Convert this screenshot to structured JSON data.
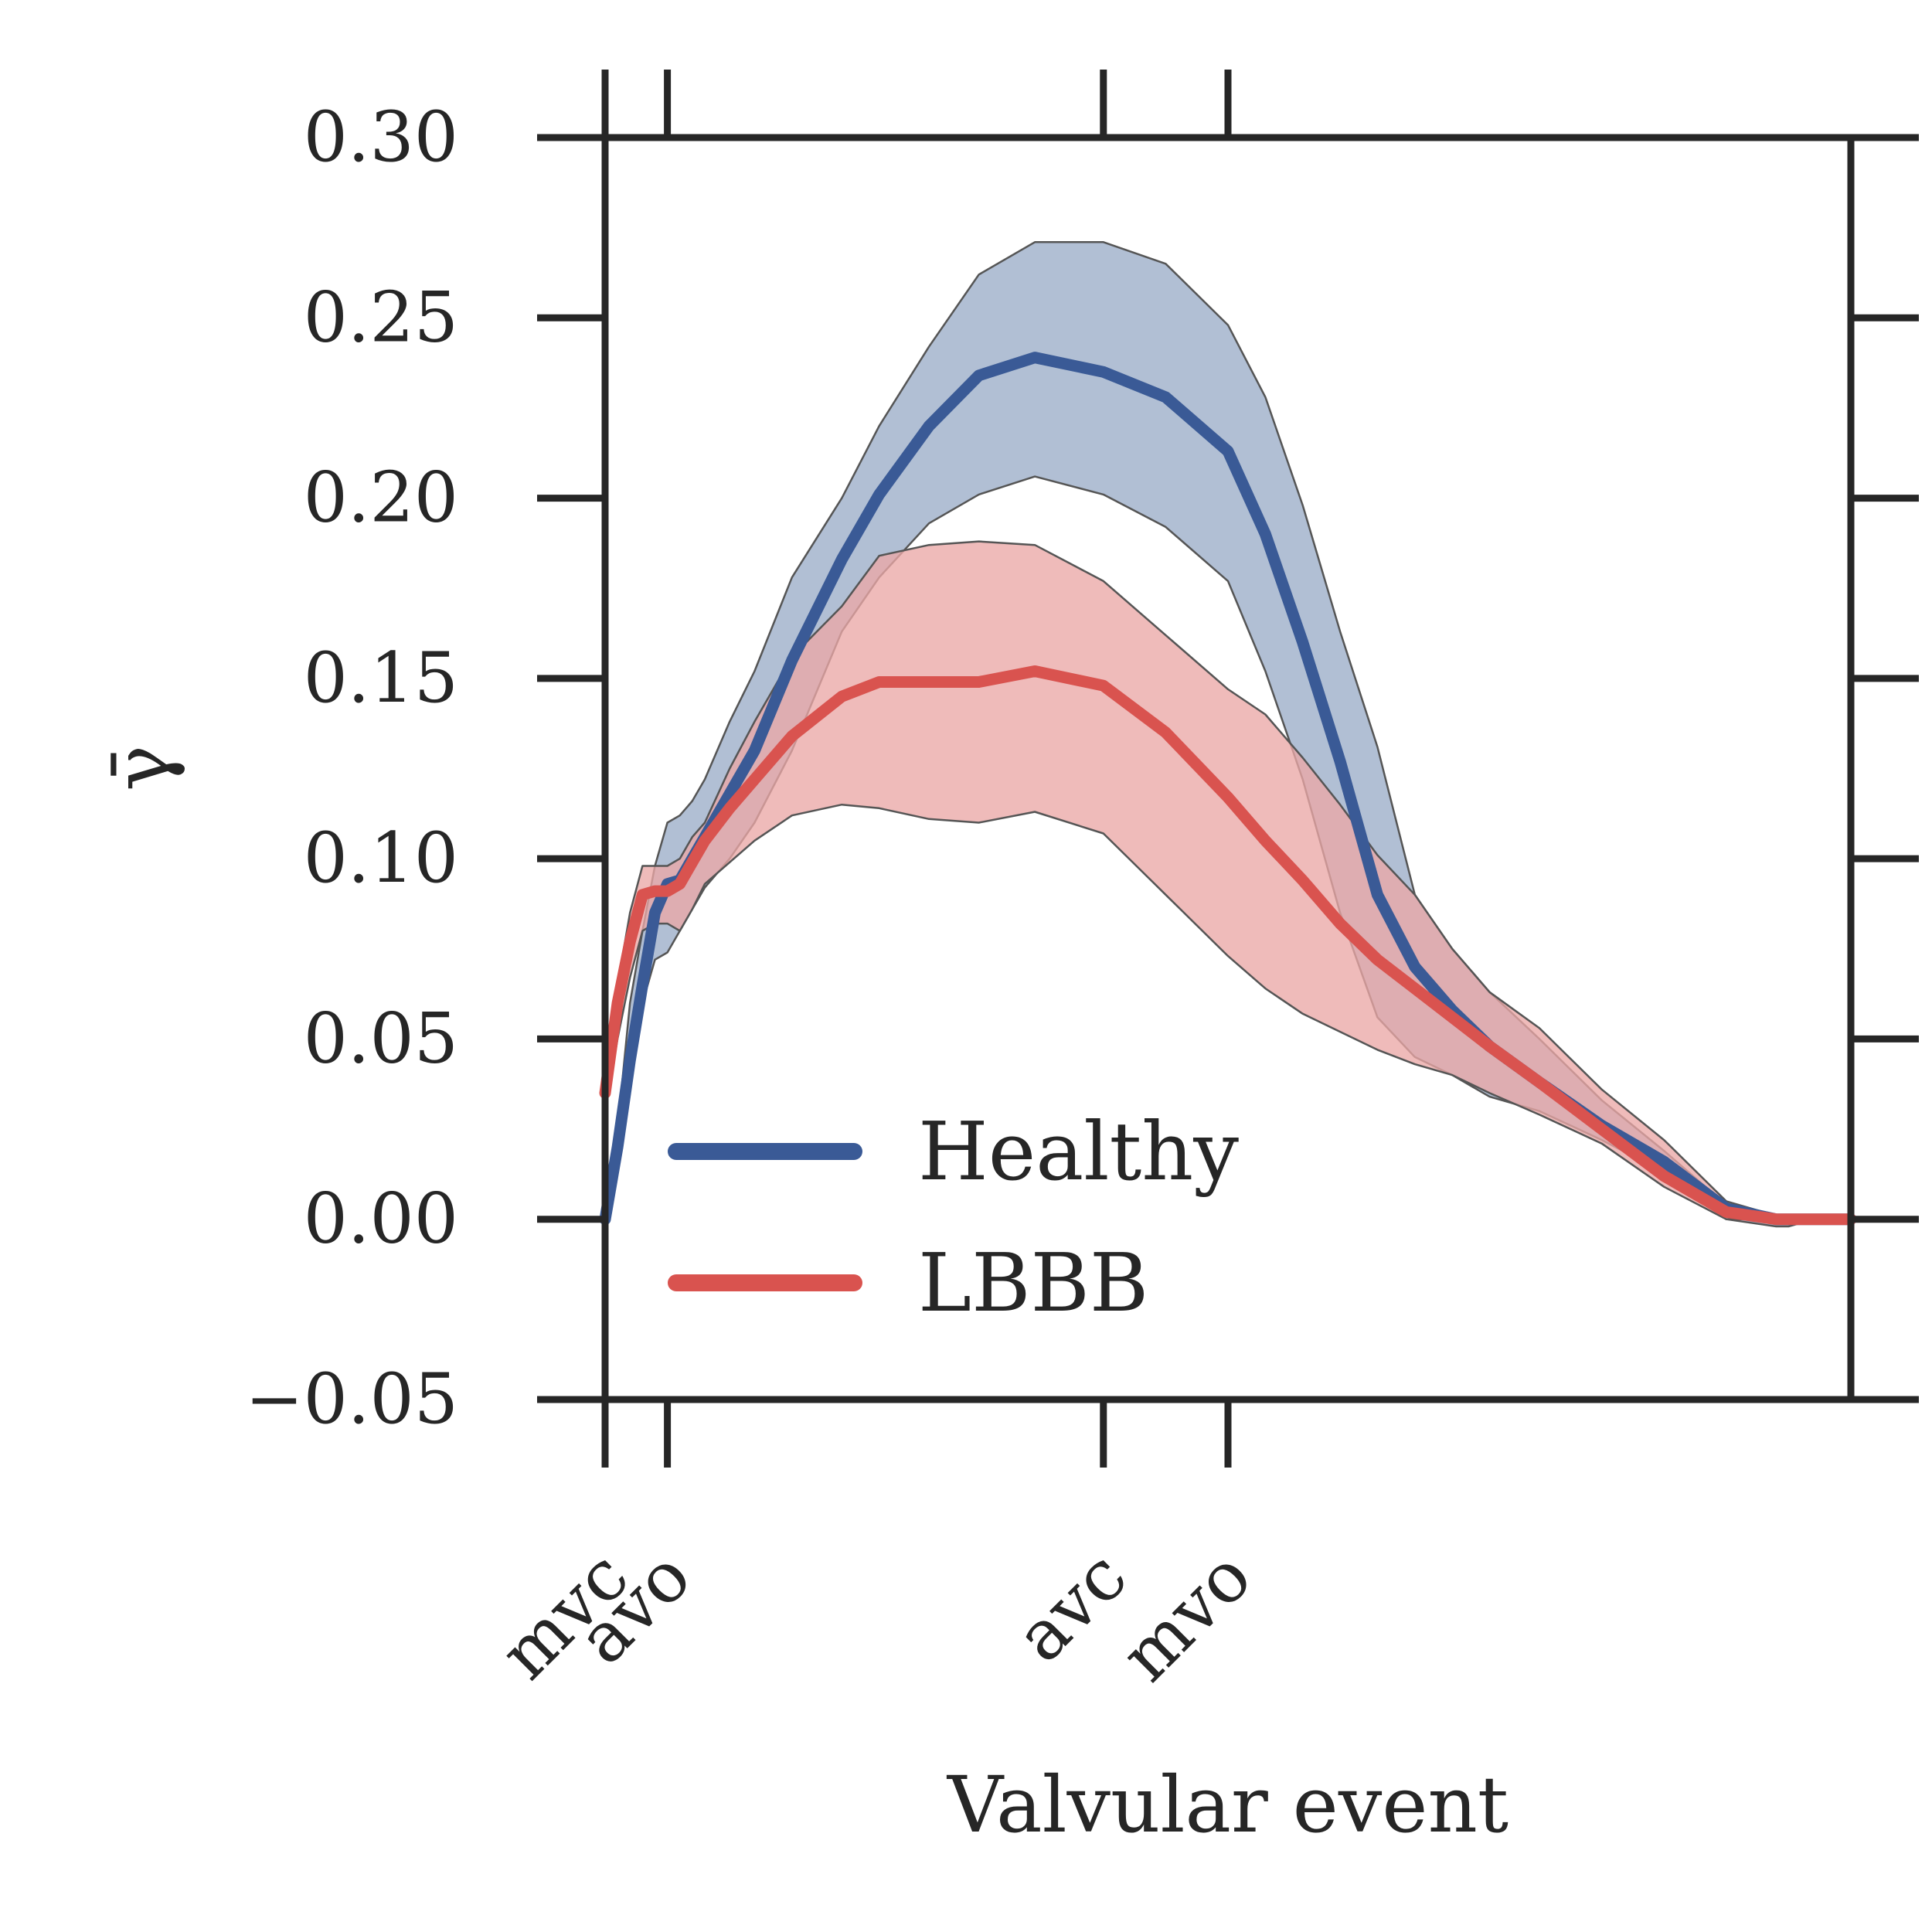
{
  "chart_data": {
    "type": "line",
    "title": "",
    "xlabel": "Valvular event",
    "ylabel": "γ̄",
    "ylim": [
      -0.05,
      0.3
    ],
    "yticks": [
      -0.05,
      0.0,
      0.05,
      0.1,
      0.15,
      0.2,
      0.25,
      0.3
    ],
    "ytick_labels": [
      "−0.05",
      "0.00",
      "0.05",
      "0.10",
      "0.15",
      "0.20",
      "0.25",
      "0.30"
    ],
    "xlim": [
      0,
      100
    ],
    "xticks": [
      0,
      5,
      40,
      50
    ],
    "xtick_labels": [
      "mvc",
      "avo",
      "avc",
      "mvo"
    ],
    "grid": false,
    "legend": {
      "placement": "lower-left"
    },
    "series": [
      {
        "name": "Healthy",
        "color": "#3a5a96",
        "band_color": "#9badc8",
        "x": [
          0,
          1,
          2,
          3,
          4,
          5,
          6,
          7,
          8,
          10,
          12,
          15,
          19,
          22,
          26,
          30,
          34.5,
          40,
          45,
          50,
          53,
          56,
          59,
          62,
          65,
          68,
          71,
          75,
          80,
          85,
          90,
          94,
          95,
          96,
          100
        ],
        "mean": [
          0.0,
          0.02,
          0.044,
          0.065,
          0.085,
          0.093,
          0.094,
          0.1,
          0.106,
          0.118,
          0.13,
          0.155,
          0.183,
          0.201,
          0.22,
          0.234,
          0.239,
          0.235,
          0.228,
          0.213,
          0.19,
          0.16,
          0.127,
          0.09,
          0.07,
          0.058,
          0.048,
          0.038,
          0.026,
          0.016,
          0.003,
          0.0,
          0.0,
          0.0,
          0.0
        ],
        "lower": [
          0.0,
          0.018,
          0.04,
          0.06,
          0.072,
          0.074,
          0.08,
          0.086,
          0.092,
          0.1,
          0.11,
          0.13,
          0.163,
          0.178,
          0.193,
          0.201,
          0.206,
          0.201,
          0.192,
          0.177,
          0.152,
          0.122,
          0.085,
          0.056,
          0.045,
          0.04,
          0.034,
          0.03,
          0.022,
          0.013,
          0.0,
          -0.002,
          -0.002,
          -0.001,
          0.0
        ],
        "upper": [
          0.0,
          0.025,
          0.06,
          0.08,
          0.098,
          0.11,
          0.112,
          0.116,
          0.122,
          0.138,
          0.152,
          0.178,
          0.2,
          0.22,
          0.242,
          0.262,
          0.271,
          0.271,
          0.265,
          0.248,
          0.228,
          0.198,
          0.163,
          0.131,
          0.09,
          0.075,
          0.063,
          0.05,
          0.033,
          0.019,
          0.004,
          0.001,
          0.001,
          0.001,
          0.0
        ]
      },
      {
        "name": "LBBB",
        "color": "#d9534f",
        "band_color": "#eba8a6",
        "x": [
          0,
          1,
          2,
          3,
          4,
          5,
          6,
          7,
          8,
          10,
          12,
          15,
          19,
          22,
          26,
          30,
          34.5,
          40,
          45,
          50,
          53,
          56,
          59,
          62,
          65,
          68,
          71,
          75,
          80,
          85,
          90,
          94,
          95,
          96,
          100
        ],
        "mean": [
          0.035,
          0.06,
          0.077,
          0.09,
          0.091,
          0.091,
          0.093,
          0.099,
          0.105,
          0.114,
          0.122,
          0.134,
          0.145,
          0.149,
          0.149,
          0.149,
          0.152,
          0.148,
          0.135,
          0.117,
          0.105,
          0.094,
          0.082,
          0.072,
          0.064,
          0.056,
          0.048,
          0.038,
          0.025,
          0.012,
          0.002,
          0.0,
          0.0,
          0.0,
          0.0
        ],
        "lower": [
          0.03,
          0.05,
          0.067,
          0.08,
          0.082,
          0.082,
          0.08,
          0.086,
          0.093,
          0.099,
          0.105,
          0.112,
          0.115,
          0.114,
          0.111,
          0.11,
          0.113,
          0.107,
          0.09,
          0.073,
          0.064,
          0.057,
          0.052,
          0.047,
          0.043,
          0.04,
          0.035,
          0.029,
          0.021,
          0.009,
          0.0,
          0.0,
          0.0,
          0.0,
          0.0
        ],
        "upper": [
          0.038,
          0.065,
          0.085,
          0.098,
          0.098,
          0.098,
          0.1,
          0.106,
          0.11,
          0.125,
          0.138,
          0.156,
          0.17,
          0.184,
          0.187,
          0.188,
          0.187,
          0.177,
          0.162,
          0.147,
          0.14,
          0.128,
          0.115,
          0.101,
          0.09,
          0.075,
          0.063,
          0.053,
          0.036,
          0.022,
          0.005,
          0.001,
          0.001,
          0.001,
          0.0
        ]
      }
    ]
  }
}
